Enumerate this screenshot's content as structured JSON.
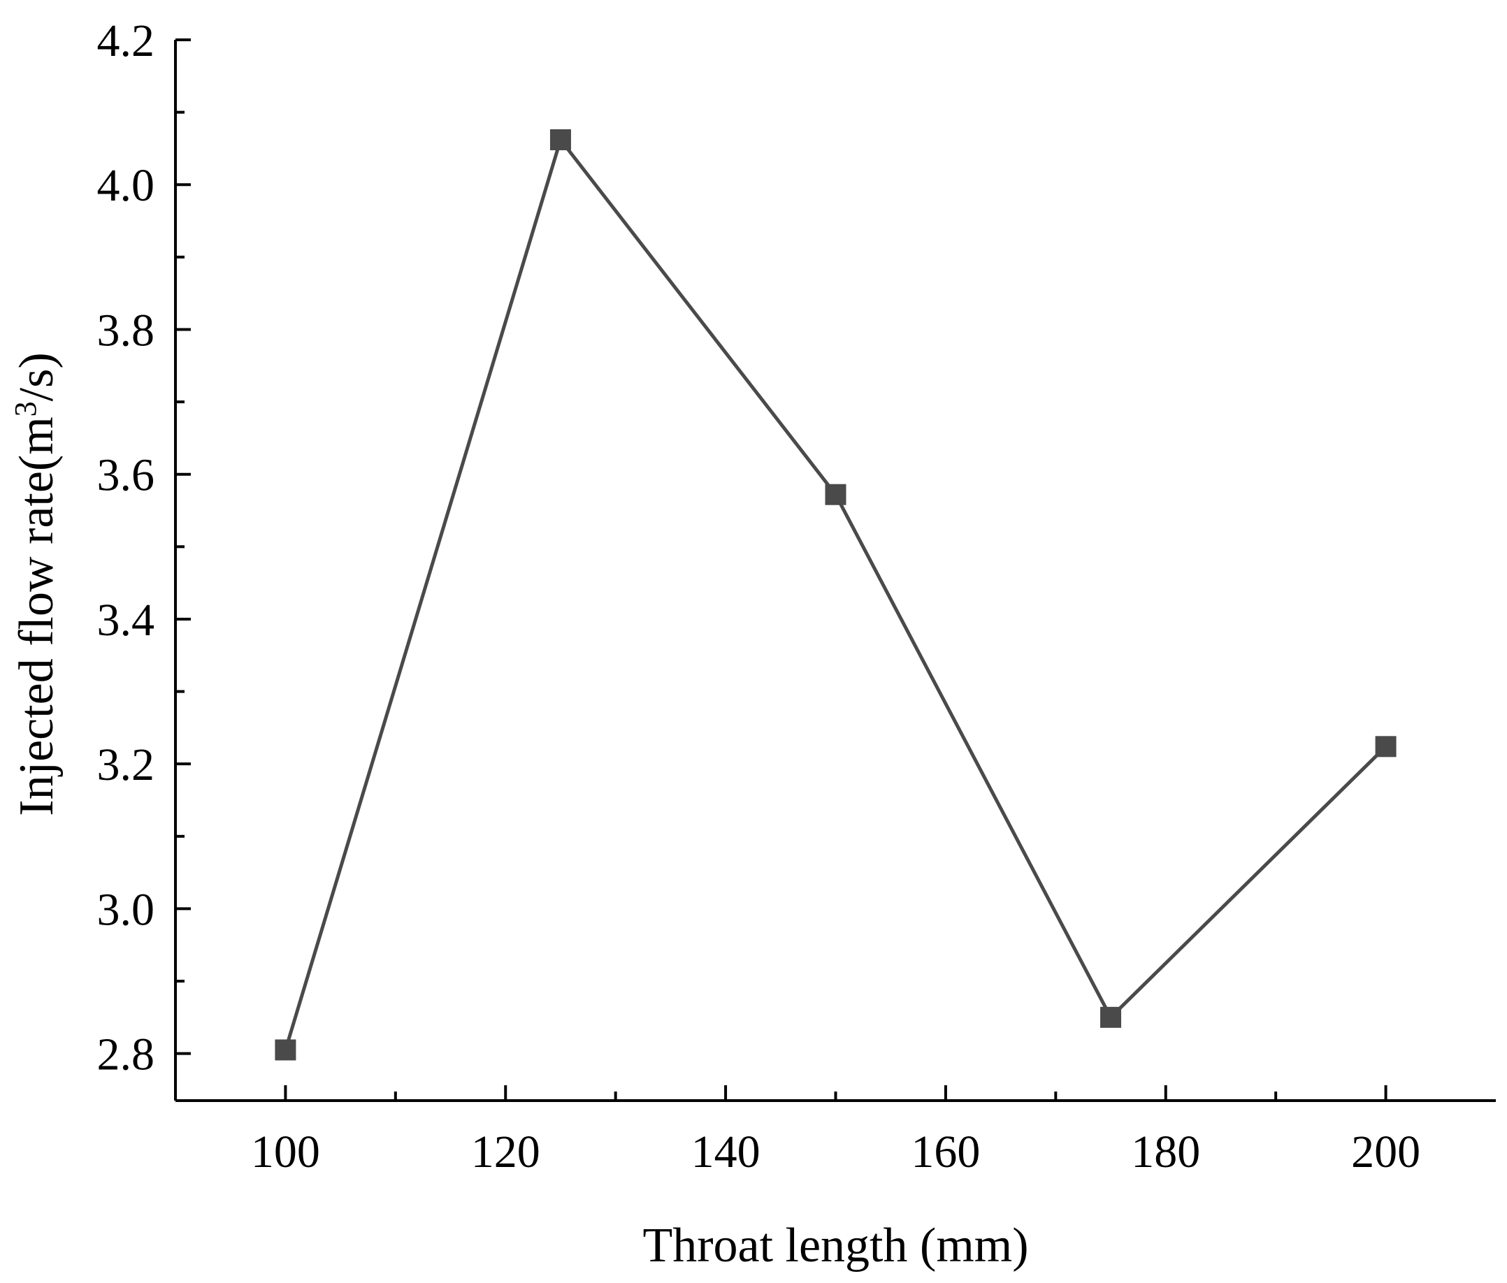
{
  "chart_data": {
    "type": "line",
    "xlabel": "Throat length (mm)",
    "ylabel": {
      "main": "Injected flow rate(m",
      "superscript": "3",
      "end": "/s)"
    },
    "x_ticks": [
      {
        "value": 100,
        "label": "100"
      },
      {
        "value": 120,
        "label": "120"
      },
      {
        "value": 140,
        "label": "140"
      },
      {
        "value": 160,
        "label": "160"
      },
      {
        "value": 180,
        "label": "180"
      },
      {
        "value": 200,
        "label": "200"
      }
    ],
    "x_minor_ticks": [
      110,
      130,
      150,
      170,
      190
    ],
    "y_ticks": [
      {
        "value": 2.8,
        "label": "2.8"
      },
      {
        "value": 3.0,
        "label": "3.0"
      },
      {
        "value": 3.2,
        "label": "3.2"
      },
      {
        "value": 3.4,
        "label": "3.4"
      },
      {
        "value": 3.6,
        "label": "3.6"
      },
      {
        "value": 3.8,
        "label": "3.8"
      },
      {
        "value": 4.0,
        "label": "4.0"
      },
      {
        "value": 4.2,
        "label": "4.2"
      }
    ],
    "y_minor_ticks": [
      2.9,
      3.1,
      3.3,
      3.5,
      3.7,
      3.9,
      4.1
    ],
    "xlim": [
      90,
      210
    ],
    "ylim": [
      2.735,
      4.2
    ],
    "grid": false,
    "series": [
      {
        "marker": "square",
        "color": "#4a4a4a",
        "points": [
          {
            "x": 100,
            "y": 2.805
          },
          {
            "x": 125,
            "y": 4.062
          },
          {
            "x": 150,
            "y": 3.572
          },
          {
            "x": 175,
            "y": 2.85
          },
          {
            "x": 200,
            "y": 3.224
          }
        ]
      }
    ]
  }
}
